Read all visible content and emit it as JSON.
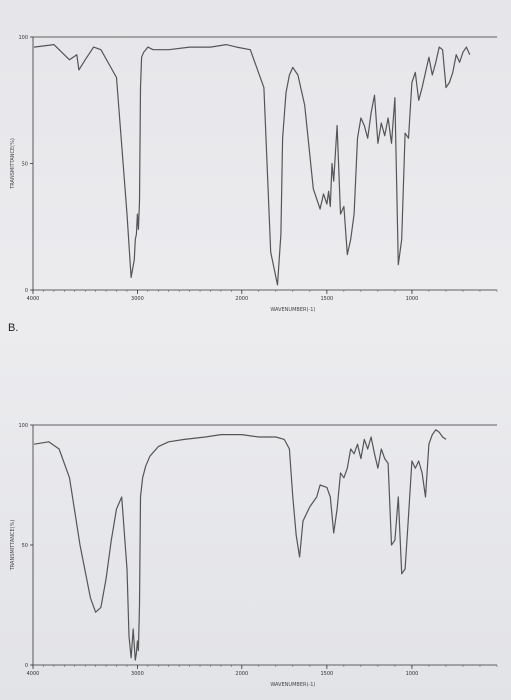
{
  "panel_b_label": "B.",
  "chart_data": [
    {
      "type": "line",
      "title": "",
      "xlabel": "WAVENUMBER(-1)",
      "ylabel": "TRANSMITTANCE(%)",
      "xlim": [
        4000,
        500
      ],
      "ylim": [
        0,
        100
      ],
      "x_ticks": [
        "4000",
        "3000",
        "2000",
        "1500",
        "1000"
      ],
      "y_ticks": [
        "0",
        "50",
        "100"
      ],
      "grid": false,
      "line_color": "#555555",
      "series": [
        {
          "x": [
            3990,
            3800,
            3650,
            3580,
            3560,
            3500,
            3420,
            3350,
            3200,
            3100,
            3060,
            3030,
            3020,
            3010,
            3000,
            2990,
            2980,
            2970,
            2960,
            2940,
            2920,
            2900,
            2850,
            2700,
            2500,
            2300,
            2150,
            2050,
            1950,
            1870,
            1830,
            1790,
            1770,
            1760,
            1740,
            1720,
            1700,
            1670,
            1630,
            1580,
            1540,
            1520,
            1500,
            1490,
            1480,
            1470,
            1460,
            1440,
            1420,
            1400,
            1380,
            1360,
            1340,
            1320,
            1300,
            1280,
            1260,
            1240,
            1220,
            1200,
            1180,
            1160,
            1140,
            1120,
            1100,
            1080,
            1060,
            1040,
            1020,
            1000,
            980,
            960,
            940,
            920,
            900,
            880,
            860,
            840,
            820,
            800,
            780,
            760,
            740,
            720,
            700,
            680,
            660
          ],
          "y": [
            96,
            97,
            91,
            93,
            87,
            91,
            96,
            95,
            84,
            30,
            5,
            12,
            20,
            22,
            30,
            24,
            35,
            80,
            92,
            94,
            95,
            96,
            95,
            95,
            96,
            96,
            97,
            96,
            95,
            80,
            15,
            2,
            22,
            60,
            78,
            85,
            88,
            85,
            73,
            40,
            32,
            38,
            34,
            39,
            33,
            50,
            43,
            65,
            30,
            33,
            14,
            20,
            30,
            60,
            68,
            65,
            60,
            70,
            77,
            58,
            66,
            61,
            68,
            58,
            76,
            10,
            20,
            62,
            60,
            82,
            86,
            75,
            80,
            86,
            92,
            85,
            90,
            96,
            95,
            80,
            82,
            86,
            93,
            90,
            94,
            96,
            93
          ],
          "name": ""
        }
      ]
    },
    {
      "type": "line",
      "title": "",
      "xlabel": "WAVENUMBER(-1)",
      "ylabel": "TRANSMITTANCE(%)",
      "xlim": [
        4000,
        500
      ],
      "ylim": [
        0,
        100
      ],
      "x_ticks": [
        "4000",
        "3000",
        "2000",
        "1500",
        "1000"
      ],
      "y_ticks": [
        "0",
        "50",
        "100"
      ],
      "grid": false,
      "line_color": "#555555",
      "series": [
        {
          "x": [
            3990,
            3850,
            3750,
            3650,
            3550,
            3450,
            3400,
            3350,
            3300,
            3250,
            3200,
            3150,
            3100,
            3080,
            3060,
            3040,
            3030,
            3020,
            3010,
            3000,
            2990,
            2980,
            2970,
            2950,
            2920,
            2880,
            2800,
            2700,
            2550,
            2350,
            2200,
            2100,
            2000,
            1900,
            1800,
            1750,
            1720,
            1700,
            1680,
            1660,
            1640,
            1600,
            1560,
            1540,
            1500,
            1480,
            1460,
            1440,
            1420,
            1400,
            1380,
            1360,
            1340,
            1320,
            1300,
            1280,
            1260,
            1240,
            1220,
            1200,
            1180,
            1160,
            1140,
            1120,
            1100,
            1080,
            1060,
            1040,
            1020,
            1000,
            980,
            960,
            940,
            920,
            900,
            880,
            860,
            840,
            820,
            800
          ],
          "y": [
            92,
            93,
            90,
            78,
            50,
            28,
            22,
            24,
            36,
            52,
            65,
            70,
            40,
            12,
            3,
            15,
            8,
            2,
            5,
            10,
            6,
            25,
            70,
            78,
            83,
            87,
            91,
            93,
            94,
            95,
            96,
            96,
            96,
            95,
            95,
            94,
            90,
            70,
            54,
            45,
            60,
            66,
            70,
            75,
            74,
            70,
            55,
            65,
            80,
            78,
            82,
            90,
            88,
            92,
            86,
            94,
            90,
            95,
            88,
            82,
            90,
            86,
            84,
            50,
            52,
            70,
            38,
            40,
            62,
            85,
            82,
            85,
            80,
            70,
            92,
            96,
            98,
            97,
            95,
            94
          ],
          "name": ""
        }
      ]
    }
  ]
}
